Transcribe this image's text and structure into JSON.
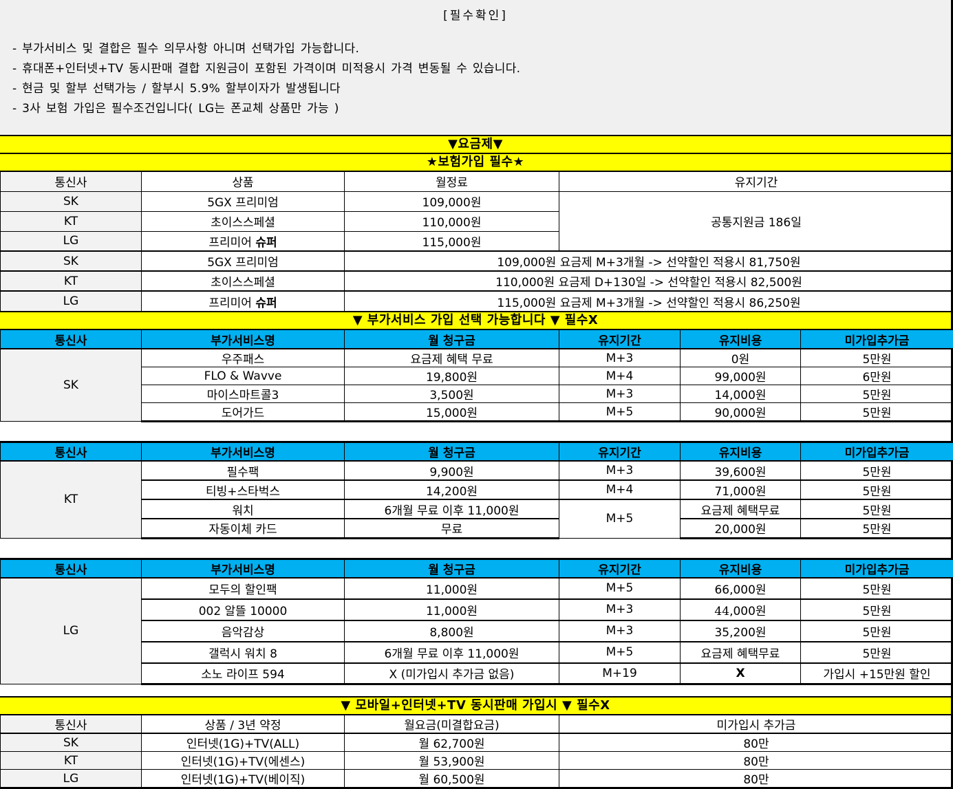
{
  "page": {
    "title": "[필수확인]",
    "notes": [
      "- 부가서비스 및 결합은 필수 의무사항 아니며 선택가입 가능합니다.",
      "- 휴대폰+인터넷+TV 동시판매 결합 지원금이 포함된 가격이며 미적용시 가격 변동될 수 있습니다.",
      "- 현금 및 할부 선택가능 / 할부시 5.9% 할부이자가 발생됩니다",
      "- 3사 보험 가입은 필수조건입니다( LG는 폰교체 상품만 가능 )"
    ]
  },
  "colors": {
    "banner_yellow": "#FFFF00",
    "header_blue": "#00B0F0",
    "cell_gray": "#F2F2F2"
  },
  "banners": {
    "plan": "▼요금제▼",
    "insurance": "★보험가입 필수★",
    "addon": "▼ 부가서비스 가입 선택 가능합니다 ▼ 필수X",
    "bundle": "▼ 모바일+인터넷+TV 동시판매 가입시 ▼ 필수X"
  },
  "plan_table": {
    "header": [
      {
        "t": "통신사",
        "cls": "gray"
      },
      {
        "t": "상품"
      },
      {
        "t": "월정료"
      },
      {
        "t": "유지기간"
      }
    ],
    "rows": [
      {
        "cells": [
          {
            "t": "SK",
            "cls": "gray"
          },
          {
            "t": "5GX 프리미엄"
          },
          {
            "t": "109,000원"
          },
          {
            "t": "공통지원금 186일",
            "rowspan": 3
          }
        ]
      },
      {
        "cells": [
          {
            "t": "KT",
            "cls": "gray"
          },
          {
            "t": "초이스스페셜"
          },
          {
            "t": "110,000원"
          }
        ]
      },
      {
        "cells": [
          {
            "t": "LG",
            "cls": "gray"
          },
          {
            "parts": [
              {
                "t": "프리미어 "
              },
              {
                "t": "슈퍼",
                "b": true
              }
            ]
          },
          {
            "t": "115,000원"
          }
        ]
      },
      {
        "cls": "g2",
        "cells": [
          {
            "t": "SK",
            "cls": "gray"
          },
          {
            "t": "5GX 프리미엄"
          },
          {
            "t": "109,000원 요금제 M+3개월 -> 선약할인 적용시 81,750원",
            "colspan": 2
          }
        ]
      },
      {
        "cls": "g2",
        "cells": [
          {
            "t": "KT",
            "cls": "gray"
          },
          {
            "t": "초이스스페셜"
          },
          {
            "t": "110,000원 요금제 D+130일 -> 선약할인 적용시 82,500원",
            "colspan": 2
          }
        ]
      },
      {
        "cls": "g2",
        "cells": [
          {
            "t": "LG",
            "cls": "gray"
          },
          {
            "parts": [
              {
                "t": "프리미어 "
              },
              {
                "t": "슈퍼",
                "b": true
              }
            ]
          },
          {
            "t": "115,000원 요금제 M+3개월 -> 선약할인 적용시 86,250원",
            "colspan": 2
          }
        ]
      }
    ]
  },
  "addon_tables": [
    {
      "carrier": "SK",
      "header": [
        {
          "t": "통신사"
        },
        {
          "t": "부가서비스명"
        },
        {
          "t": "월 청구금"
        },
        {
          "t": "유지기간"
        },
        {
          "t": "유지비용"
        },
        {
          "t": "미가입추가금"
        }
      ],
      "rows": [
        {
          "cells": [
            {
              "t": "SK",
              "cls": "gray",
              "rowspan": 4
            },
            {
              "t": "우주패스"
            },
            {
              "t": "요금제 혜택 무료"
            },
            {
              "t": "M+3"
            },
            {
              "t": "0원"
            },
            {
              "t": "5만원"
            }
          ]
        },
        {
          "cells": [
            {
              "t": "FLO & Wavve"
            },
            {
              "t": "19,800원"
            },
            {
              "t": "M+4"
            },
            {
              "t": "99,000원"
            },
            {
              "t": "6만원"
            }
          ]
        },
        {
          "cells": [
            {
              "t": "마이스마트콜3"
            },
            {
              "t": "3,500원"
            },
            {
              "t": "M+3"
            },
            {
              "t": "14,000원"
            },
            {
              "t": "5만원"
            }
          ]
        },
        {
          "cells": [
            {
              "t": "도어가드"
            },
            {
              "t": "15,000원"
            },
            {
              "t": "M+5"
            },
            {
              "t": "90,000원"
            },
            {
              "t": "5만원"
            }
          ]
        }
      ]
    },
    {
      "carrier": "KT",
      "header": [
        {
          "t": "통신사"
        },
        {
          "t": "부가서비스명"
        },
        {
          "t": "월 청구금"
        },
        {
          "t": "유지기간"
        },
        {
          "t": "유지비용"
        },
        {
          "t": "미가입추가금"
        }
      ],
      "rows": [
        {
          "cells": [
            {
              "t": "KT",
              "cls": "gray",
              "rowspan": 4
            },
            {
              "t": "필수팩"
            },
            {
              "t": "9,900원"
            },
            {
              "t": "M+3"
            },
            {
              "t": "39,600원"
            },
            {
              "t": "5만원"
            }
          ]
        },
        {
          "cells": [
            {
              "t": "티빙+스타벅스"
            },
            {
              "t": "14,200원"
            },
            {
              "t": "M+4"
            },
            {
              "t": "71,000원"
            },
            {
              "t": "5만원"
            }
          ]
        },
        {
          "cells": [
            {
              "t": "워치"
            },
            {
              "t": "6개월 무료 이후 11,000원"
            },
            {
              "t": "M+5",
              "rowspan": 2
            },
            {
              "t": "요금제 혜택무료"
            },
            {
              "t": "5만원"
            }
          ]
        },
        {
          "cells": [
            {
              "t": "자동이체 카드"
            },
            {
              "t": "무료"
            },
            {
              "t": "20,000원"
            },
            {
              "t": "5만원"
            }
          ]
        }
      ]
    },
    {
      "carrier": "LG",
      "header": [
        {
          "t": "통신사"
        },
        {
          "t": "부가서비스명"
        },
        {
          "t": "월 청구금"
        },
        {
          "t": "유지기간"
        },
        {
          "t": "유지비용"
        },
        {
          "t": "미가입추가금"
        }
      ],
      "rows": [
        {
          "cells": [
            {
              "t": "LG",
              "cls": "gray",
              "rowspan": 5
            },
            {
              "t": "모두의 할인팩"
            },
            {
              "t": "11,000원"
            },
            {
              "t": "M+5"
            },
            {
              "t": "66,000원"
            },
            {
              "t": "5만원"
            }
          ]
        },
        {
          "cells": [
            {
              "t": "002 알뜰 10000"
            },
            {
              "t": "11,000원"
            },
            {
              "t": "M+3"
            },
            {
              "parts": [
                {
                  "t": "44",
                  "serif": true
                },
                {
                  "t": ",000원"
                }
              ]
            },
            {
              "t": "5만원"
            }
          ]
        },
        {
          "cells": [
            {
              "t": "음악감상"
            },
            {
              "t": "8,800원"
            },
            {
              "t": "M+3"
            },
            {
              "t": "35,200원"
            },
            {
              "t": "5만원"
            }
          ]
        },
        {
          "cells": [
            {
              "t": "갤럭시 워치 8"
            },
            {
              "t": "6개월 무료 이후 11,000원"
            },
            {
              "t": "M+5"
            },
            {
              "t": "요금제 혜택무료"
            },
            {
              "t": "5만원"
            }
          ]
        },
        {
          "cells": [
            {
              "t": "소노 라이프 594"
            },
            {
              "t": "X (미가입시 추가금 없음)"
            },
            {
              "t": "M+19"
            },
            {
              "t": "X",
              "b": true
            },
            {
              "t": "가입시 +15만원 할인"
            }
          ]
        }
      ]
    }
  ],
  "bundle_table": {
    "header": [
      {
        "t": "통신사",
        "cls": "gray"
      },
      {
        "t": "상품 / 3년 약정"
      },
      {
        "t": "월요금(미결합요금)"
      },
      {
        "t": "미가입시 추가금"
      }
    ],
    "rows": [
      {
        "cells": [
          {
            "t": "SK",
            "cls": "gray"
          },
          {
            "t": "인터넷(1G)+TV(ALL)"
          },
          {
            "t": "월 62,700원"
          },
          {
            "t": "80만"
          }
        ]
      },
      {
        "cells": [
          {
            "t": "KT",
            "cls": "gray"
          },
          {
            "t": "인터넷(1G)+TV(에센스)"
          },
          {
            "t": "월 53,900원"
          },
          {
            "t": "80만"
          }
        ]
      },
      {
        "cells": [
          {
            "t": "LG",
            "cls": "gray"
          },
          {
            "t": "인터넷(1G)+TV(베이직)"
          },
          {
            "t": "월 60,500원"
          },
          {
            "t": "80만"
          }
        ]
      }
    ]
  }
}
